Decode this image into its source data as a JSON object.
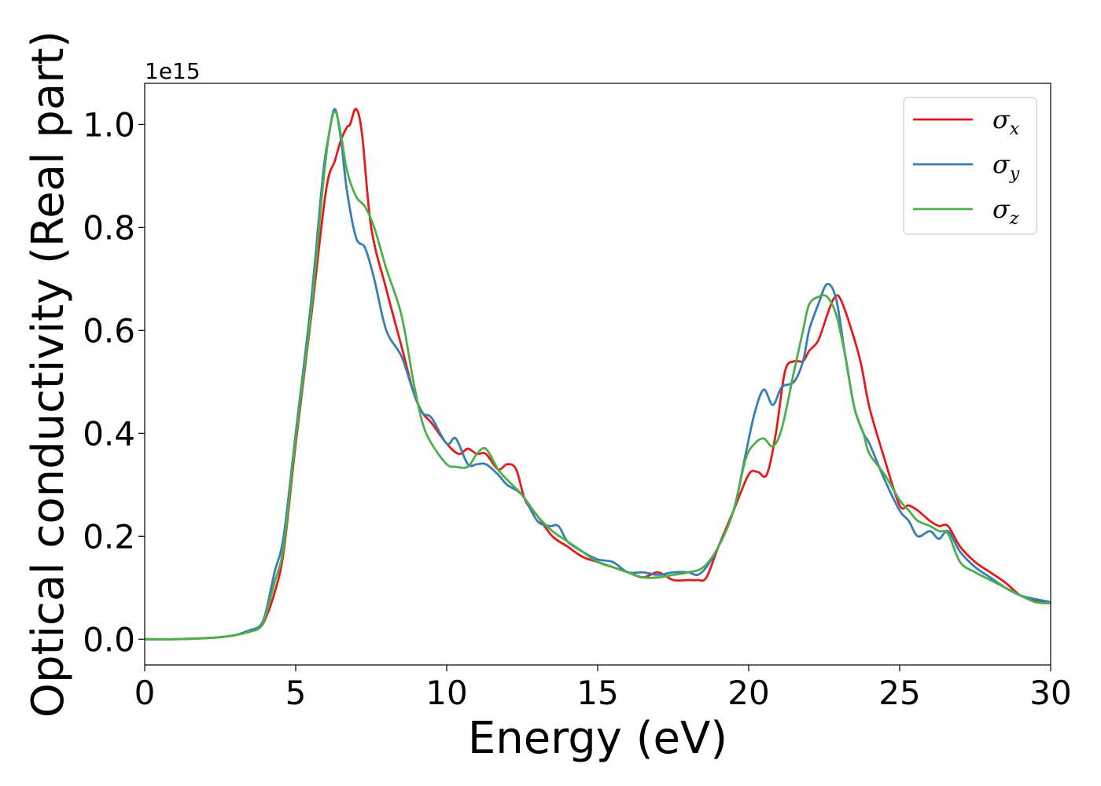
{
  "chart_data": {
    "type": "line",
    "xlabel": "Energy (eV)",
    "ylabel": "Optical conductivity (Real part)",
    "y_offset_text": "1e15",
    "xlim": [
      0,
      30
    ],
    "ylim": [
      -0.05,
      1.08
    ],
    "y_scale_factor": 1000000000000000.0,
    "x_ticks": [
      0,
      5,
      10,
      15,
      20,
      25,
      30
    ],
    "x_tick_labels": [
      "0",
      "5",
      "10",
      "15",
      "20",
      "25",
      "30"
    ],
    "y_ticks": [
      0.0,
      0.2,
      0.4,
      0.6,
      0.8,
      1.0
    ],
    "y_tick_labels": [
      "0.0",
      "0.2",
      "0.4",
      "0.6",
      "0.8",
      "1.0"
    ],
    "grid": false,
    "legend_position": "top-right",
    "series": [
      {
        "name": "σx",
        "symbol": "σ",
        "subscript": "x",
        "color": "#e41a1c",
        "x": [
          0,
          1,
          2,
          2.5,
          3,
          3.5,
          3.8,
          4.0,
          4.3,
          4.6,
          5.0,
          5.5,
          6.0,
          6.3,
          6.5,
          6.7,
          6.8,
          7.0,
          7.2,
          7.5,
          8.0,
          8.5,
          8.9,
          9.2,
          9.5,
          10.0,
          10.4,
          10.7,
          11.0,
          11.3,
          11.7,
          12.0,
          12.3,
          12.6,
          13.0,
          13.5,
          14.0,
          14.5,
          15.0,
          15.5,
          16.0,
          16.5,
          17.0,
          17.5,
          18.0,
          18.3,
          18.6,
          19.0,
          19.5,
          20.0,
          20.3,
          20.6,
          20.9,
          21.2,
          21.5,
          21.8,
          22.0,
          22.3,
          22.6,
          22.8,
          23.0,
          23.3,
          23.7,
          24.0,
          24.5,
          25.0,
          25.3,
          25.6,
          26.0,
          26.3,
          26.6,
          27.0,
          27.5,
          28.0,
          28.5,
          29.0,
          29.5,
          30.0
        ],
        "y": [
          0.0,
          0.0,
          0.002,
          0.004,
          0.008,
          0.015,
          0.022,
          0.04,
          0.09,
          0.17,
          0.38,
          0.62,
          0.87,
          0.93,
          0.97,
          0.995,
          1.0,
          1.03,
          0.98,
          0.8,
          0.68,
          0.57,
          0.48,
          0.44,
          0.42,
          0.38,
          0.36,
          0.37,
          0.36,
          0.36,
          0.33,
          0.34,
          0.33,
          0.27,
          0.24,
          0.2,
          0.18,
          0.16,
          0.15,
          0.14,
          0.13,
          0.12,
          0.13,
          0.115,
          0.115,
          0.115,
          0.12,
          0.18,
          0.25,
          0.32,
          0.325,
          0.32,
          0.4,
          0.52,
          0.54,
          0.54,
          0.56,
          0.58,
          0.63,
          0.66,
          0.665,
          0.62,
          0.54,
          0.45,
          0.35,
          0.26,
          0.26,
          0.25,
          0.23,
          0.22,
          0.22,
          0.18,
          0.15,
          0.13,
          0.11,
          0.085,
          0.075,
          0.07
        ]
      },
      {
        "name": "σy",
        "symbol": "σ",
        "subscript": "y",
        "color": "#377eb8",
        "x": [
          0,
          1,
          2,
          2.5,
          3,
          3.5,
          3.8,
          4.0,
          4.3,
          4.6,
          5.0,
          5.5,
          5.9,
          6.1,
          6.3,
          6.5,
          6.7,
          7.0,
          7.3,
          7.6,
          8.0,
          8.5,
          8.9,
          9.2,
          9.5,
          10.0,
          10.3,
          10.7,
          11.0,
          11.3,
          11.7,
          12.0,
          12.5,
          13.0,
          13.4,
          13.7,
          14.0,
          14.5,
          15.0,
          15.5,
          16.0,
          16.5,
          17.0,
          17.5,
          18.0,
          18.3,
          18.6,
          19.0,
          19.5,
          19.9,
          20.2,
          20.5,
          20.8,
          21.1,
          21.5,
          21.8,
          22.0,
          22.3,
          22.6,
          22.9,
          23.2,
          23.5,
          23.8,
          24.0,
          24.5,
          25.0,
          25.3,
          25.6,
          26.0,
          26.3,
          26.6,
          27.0,
          27.5,
          28.0,
          28.5,
          29.0,
          29.5,
          30.0
        ],
        "y": [
          0.0,
          0.0,
          0.002,
          0.004,
          0.008,
          0.018,
          0.025,
          0.05,
          0.13,
          0.2,
          0.4,
          0.65,
          0.9,
          0.98,
          1.03,
          0.97,
          0.87,
          0.78,
          0.76,
          0.7,
          0.6,
          0.55,
          0.48,
          0.44,
          0.43,
          0.38,
          0.39,
          0.34,
          0.34,
          0.34,
          0.32,
          0.3,
          0.28,
          0.23,
          0.22,
          0.22,
          0.19,
          0.17,
          0.155,
          0.15,
          0.13,
          0.13,
          0.125,
          0.13,
          0.13,
          0.125,
          0.14,
          0.18,
          0.25,
          0.36,
          0.44,
          0.485,
          0.455,
          0.49,
          0.5,
          0.54,
          0.6,
          0.65,
          0.69,
          0.66,
          0.55,
          0.45,
          0.4,
          0.38,
          0.31,
          0.25,
          0.23,
          0.2,
          0.21,
          0.195,
          0.21,
          0.17,
          0.14,
          0.12,
          0.1,
          0.085,
          0.078,
          0.072
        ]
      },
      {
        "name": "σz",
        "symbol": "σ",
        "subscript": "z",
        "color": "#4daf4a",
        "x": [
          0,
          1,
          2,
          2.5,
          3,
          3.5,
          3.8,
          4.0,
          4.3,
          4.6,
          5.0,
          5.5,
          5.9,
          6.1,
          6.3,
          6.5,
          6.7,
          7.0,
          7.3,
          7.6,
          8.0,
          8.5,
          8.9,
          9.2,
          9.5,
          10.0,
          10.3,
          10.7,
          11.0,
          11.3,
          11.7,
          12.0,
          12.5,
          13.0,
          13.5,
          14.0,
          14.5,
          15.0,
          15.5,
          16.0,
          16.5,
          17.0,
          17.5,
          18.0,
          18.5,
          19.0,
          19.5,
          19.9,
          20.2,
          20.5,
          20.8,
          21.1,
          21.5,
          21.8,
          22.0,
          22.3,
          22.6,
          22.9,
          23.2,
          23.5,
          23.8,
          24.0,
          24.5,
          25.0,
          25.3,
          25.6,
          26.0,
          26.3,
          26.6,
          27.0,
          27.5,
          28.0,
          28.5,
          29.0,
          29.5,
          30.0
        ],
        "y": [
          0.0,
          0.0,
          0.002,
          0.004,
          0.008,
          0.015,
          0.022,
          0.045,
          0.11,
          0.18,
          0.39,
          0.63,
          0.88,
          0.98,
          1.025,
          0.98,
          0.91,
          0.86,
          0.84,
          0.8,
          0.72,
          0.63,
          0.5,
          0.42,
          0.38,
          0.34,
          0.335,
          0.335,
          0.36,
          0.37,
          0.33,
          0.31,
          0.28,
          0.24,
          0.21,
          0.19,
          0.17,
          0.15,
          0.14,
          0.13,
          0.12,
          0.12,
          0.125,
          0.13,
          0.14,
          0.18,
          0.25,
          0.35,
          0.38,
          0.39,
          0.375,
          0.41,
          0.52,
          0.6,
          0.65,
          0.665,
          0.665,
          0.63,
          0.55,
          0.45,
          0.4,
          0.36,
          0.32,
          0.27,
          0.25,
          0.23,
          0.22,
          0.21,
          0.205,
          0.15,
          0.13,
          0.115,
          0.1,
          0.085,
          0.072,
          0.07
        ]
      }
    ]
  }
}
